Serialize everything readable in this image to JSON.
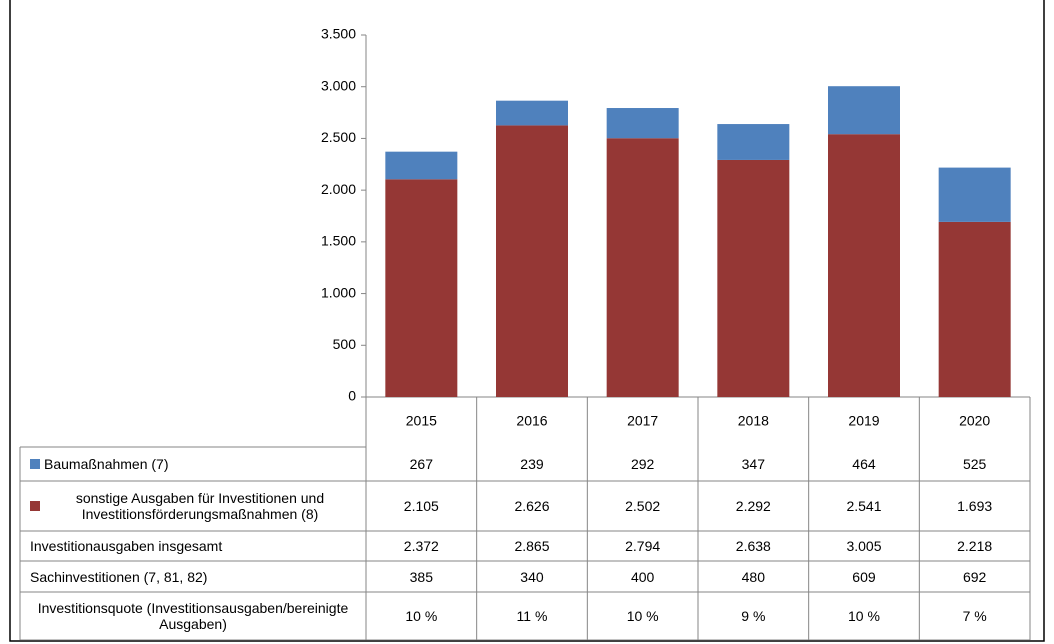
{
  "chart_data": {
    "type": "stacked_bar",
    "categories": [
      "2015",
      "2016",
      "2017",
      "2018",
      "2019",
      "2020"
    ],
    "series": [
      {
        "name": "sonstige Ausgaben für Investitionen und Investitionsförderungsmaßnahmen (8)",
        "color": "#953735",
        "values": [
          2105,
          2626,
          2502,
          2292,
          2541,
          1693
        ],
        "value_labels": [
          "2.105",
          "2.626",
          "2.502",
          "2.292",
          "2.541",
          "1.693"
        ]
      },
      {
        "name": "Baumaßnahmen (7)",
        "color": "#4f81bd",
        "values": [
          267,
          239,
          292,
          347,
          464,
          525
        ],
        "value_labels": [
          "267",
          "239",
          "292",
          "347",
          "464",
          "525"
        ]
      }
    ],
    "table_rows": [
      {
        "name": "Investitionausgaben insgesamt",
        "values": [
          2372,
          2865,
          2794,
          2638,
          3005,
          2218
        ],
        "value_labels": [
          "2.372",
          "2.865",
          "2.794",
          "2.638",
          "3.005",
          "2.218"
        ]
      },
      {
        "name": "Sachinvestitionen (7, 81, 82)",
        "values": [
          385,
          340,
          400,
          480,
          609,
          692
        ],
        "value_labels": [
          "385",
          "340",
          "400",
          "480",
          "609",
          "692"
        ]
      },
      {
        "name": "Investitionsquote (Investitionsausgaben/bereinigte Ausgaben)",
        "values": [
          10,
          11,
          10,
          9,
          10,
          7
        ],
        "value_labels": [
          "10 %",
          "11 %",
          "10 %",
          "9 %",
          "10 %",
          "7 %"
        ]
      }
    ],
    "ylim": [
      0,
      3500
    ],
    "yticks": [
      0,
      500,
      {
        "value": 1000,
        "label": "1.000"
      },
      {
        "value": 1500,
        "label": "1.500"
      },
      {
        "value": 2000,
        "label": "2.000"
      },
      {
        "value": 2500,
        "label": "2.500"
      },
      {
        "value": 3000,
        "label": "3.000"
      },
      {
        "value": 3500,
        "label": "3.500"
      }
    ]
  }
}
